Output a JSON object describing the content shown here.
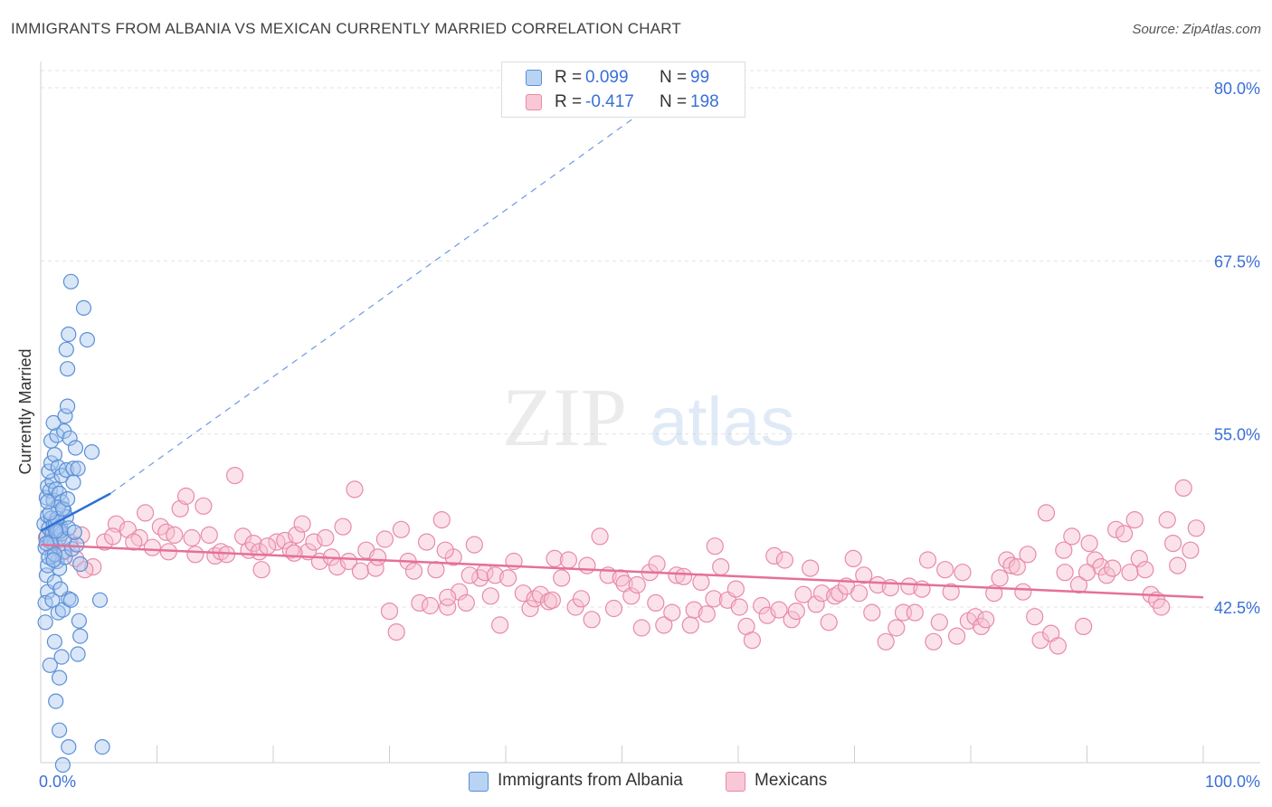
{
  "title": "IMMIGRANTS FROM ALBANIA VS MEXICAN CURRENTLY MARRIED CORRELATION CHART",
  "source": "Source: ZipAtlas.com",
  "watermark": {
    "zip": "ZIP",
    "atlas": "atlas"
  },
  "colors": {
    "blue_fill": "#a8c8f0",
    "blue_stroke": "#5b8fd6",
    "blue_line": "#2e6fd6",
    "pink_fill": "#f6bfd0",
    "pink_stroke": "#e88aa8",
    "pink_line": "#e5709a",
    "tick_label": "#3a6fd8",
    "grid": "#e3e3e3"
  },
  "stats": [
    {
      "swatch": "blue",
      "r_label": "R =",
      "r_value": "0.099",
      "n_label": "N =",
      "n_value": "99"
    },
    {
      "swatch": "pink",
      "r_label": "R =",
      "r_value": "-0.417",
      "n_label": "N =",
      "n_value": "198"
    }
  ],
  "legend": [
    {
      "swatch": "blue",
      "label": "Immigrants from Albania"
    },
    {
      "swatch": "pink",
      "label": "Mexicans"
    }
  ],
  "chart_data": {
    "type": "scatter",
    "title": "IMMIGRANTS FROM ALBANIA VS MEXICAN CURRENTLY MARRIED CORRELATION CHART",
    "xlabel": "",
    "ylabel": "Currently Married",
    "xlim": [
      0,
      100
    ],
    "ylim": [
      33.0,
      82.0
    ],
    "x_tick_labels": [
      "0.0%",
      "100.0%"
    ],
    "y_ticks": [
      42.5,
      55.0,
      67.5,
      80.0
    ],
    "y_tick_labels": [
      "42.5%",
      "55.0%",
      "67.5%",
      "80.0%"
    ],
    "grid": true,
    "series": [
      {
        "name": "Immigrants from Albania",
        "color": "blue",
        "trend": {
          "x": [
            0,
            6.0
          ],
          "y": [
            48.0,
            50.7
          ],
          "extended_to": [
            52,
            78.4
          ]
        },
        "points": [
          [
            0.3,
            48.5
          ],
          [
            0.5,
            47.6
          ],
          [
            0.4,
            46.8
          ],
          [
            0.6,
            49.1
          ],
          [
            0.7,
            48.2
          ],
          [
            0.8,
            47.3
          ],
          [
            0.9,
            48.9
          ],
          [
            1.0,
            47.8
          ],
          [
            1.1,
            48.4
          ],
          [
            1.2,
            47.1
          ],
          [
            1.3,
            48.6
          ],
          [
            1.4,
            47.9
          ],
          [
            1.5,
            48.1
          ],
          [
            1.6,
            47.5
          ],
          [
            1.7,
            48.3
          ],
          [
            1.8,
            47.8
          ],
          [
            0.5,
            50.4
          ],
          [
            0.6,
            51.2
          ],
          [
            0.8,
            50.9
          ],
          [
            1.0,
            51.6
          ],
          [
            1.1,
            50.2
          ],
          [
            1.3,
            51.0
          ],
          [
            1.6,
            50.7
          ],
          [
            1.8,
            50.1
          ],
          [
            2.0,
            49.5
          ],
          [
            2.2,
            49.0
          ],
          [
            0.7,
            52.3
          ],
          [
            0.9,
            52.9
          ],
          [
            1.2,
            53.5
          ],
          [
            1.5,
            52.6
          ],
          [
            1.8,
            52.0
          ],
          [
            2.2,
            52.4
          ],
          [
            2.8,
            52.5
          ],
          [
            3.2,
            52.5
          ],
          [
            0.9,
            54.5
          ],
          [
            1.4,
            54.9
          ],
          [
            2.0,
            55.2
          ],
          [
            2.5,
            54.7
          ],
          [
            3.0,
            54.0
          ],
          [
            4.4,
            53.7
          ],
          [
            1.1,
            55.8
          ],
          [
            2.1,
            56.3
          ],
          [
            2.3,
            57.0
          ],
          [
            2.3,
            59.7
          ],
          [
            2.2,
            61.1
          ],
          [
            2.4,
            62.2
          ],
          [
            4.0,
            61.8
          ],
          [
            2.6,
            66.0
          ],
          [
            3.7,
            64.1
          ],
          [
            1.0,
            46.2
          ],
          [
            1.4,
            45.8
          ],
          [
            2.0,
            46.5
          ],
          [
            1.6,
            45.3
          ],
          [
            0.5,
            44.8
          ],
          [
            0.6,
            43.6
          ],
          [
            0.4,
            42.8
          ],
          [
            1.0,
            43.0
          ],
          [
            1.5,
            42.1
          ],
          [
            1.9,
            42.3
          ],
          [
            2.4,
            43.1
          ],
          [
            0.4,
            41.4
          ],
          [
            1.2,
            40.0
          ],
          [
            1.8,
            38.9
          ],
          [
            0.8,
            38.3
          ],
          [
            1.6,
            37.4
          ],
          [
            3.2,
            39.1
          ],
          [
            3.4,
            40.4
          ],
          [
            3.3,
            41.5
          ],
          [
            5.1,
            43.0
          ],
          [
            1.3,
            35.7
          ],
          [
            1.6,
            33.6
          ],
          [
            2.4,
            32.4
          ],
          [
            1.9,
            31.1
          ],
          [
            5.3,
            32.4
          ],
          [
            0.6,
            45.5
          ],
          [
            2.6,
            43.0
          ],
          [
            1.2,
            44.3
          ],
          [
            1.7,
            43.8
          ],
          [
            2.1,
            46.1
          ],
          [
            2.7,
            46.7
          ],
          [
            3.1,
            47.0
          ],
          [
            3.4,
            45.6
          ],
          [
            1.5,
            49.7
          ],
          [
            2.8,
            51.5
          ],
          [
            0.7,
            46.1
          ],
          [
            0.9,
            47.2
          ],
          [
            1.2,
            46.3
          ],
          [
            1.4,
            48.9
          ],
          [
            1.7,
            48.0
          ],
          [
            2.0,
            47.4
          ],
          [
            2.4,
            48.2
          ],
          [
            0.5,
            47.1
          ],
          [
            0.8,
            49.3
          ],
          [
            1.1,
            45.9
          ],
          [
            1.9,
            49.6
          ],
          [
            2.3,
            50.3
          ],
          [
            2.9,
            47.9
          ],
          [
            0.6,
            50.1
          ],
          [
            1.3,
            48.0
          ]
        ]
      },
      {
        "name": "Mexicans",
        "color": "pink",
        "trend": {
          "x": [
            0,
            100
          ],
          "y": [
            47.0,
            43.2
          ]
        },
        "points": [
          [
            0.5,
            47.5
          ],
          [
            1.0,
            46.8
          ],
          [
            1.5,
            47.9
          ],
          [
            2.0,
            46.5
          ],
          [
            2.5,
            47.2
          ],
          [
            3.0,
            46.0
          ],
          [
            3.5,
            47.7
          ],
          [
            4.5,
            45.4
          ],
          [
            5.5,
            47.2
          ],
          [
            6.5,
            48.5
          ],
          [
            7.5,
            48.1
          ],
          [
            8.5,
            47.5
          ],
          [
            9.0,
            49.3
          ],
          [
            9.6,
            46.8
          ],
          [
            10.3,
            48.3
          ],
          [
            10.8,
            47.9
          ],
          [
            11.5,
            47.7
          ],
          [
            12.0,
            49.6
          ],
          [
            12.5,
            50.5
          ],
          [
            13.0,
            47.5
          ],
          [
            13.3,
            46.3
          ],
          [
            14.0,
            49.8
          ],
          [
            14.5,
            47.7
          ],
          [
            15.0,
            46.2
          ],
          [
            15.5,
            46.5
          ],
          [
            16.0,
            46.3
          ],
          [
            16.7,
            52.0
          ],
          [
            17.4,
            47.6
          ],
          [
            17.9,
            46.6
          ],
          [
            18.3,
            47.1
          ],
          [
            18.8,
            46.5
          ],
          [
            19.0,
            45.2
          ],
          [
            20.3,
            47.2
          ],
          [
            21.0,
            47.3
          ],
          [
            21.5,
            46.6
          ],
          [
            22.0,
            47.7
          ],
          [
            22.5,
            48.5
          ],
          [
            23.0,
            46.5
          ],
          [
            23.5,
            47.2
          ],
          [
            24.0,
            45.8
          ],
          [
            24.5,
            47.5
          ],
          [
            25.0,
            46.1
          ],
          [
            25.5,
            45.4
          ],
          [
            26.0,
            48.3
          ],
          [
            26.5,
            45.8
          ],
          [
            27.0,
            51.0
          ],
          [
            27.5,
            45.1
          ],
          [
            28.0,
            46.6
          ],
          [
            28.8,
            45.3
          ],
          [
            29.6,
            47.4
          ],
          [
            30.0,
            42.2
          ],
          [
            30.6,
            40.7
          ],
          [
            31.0,
            48.1
          ],
          [
            31.6,
            45.8
          ],
          [
            32.1,
            45.1
          ],
          [
            32.6,
            42.8
          ],
          [
            33.2,
            47.2
          ],
          [
            33.5,
            42.6
          ],
          [
            34.0,
            45.2
          ],
          [
            34.5,
            48.8
          ],
          [
            35.0,
            42.5
          ],
          [
            35.5,
            46.1
          ],
          [
            36.0,
            43.6
          ],
          [
            36.6,
            42.8
          ],
          [
            37.3,
            47.0
          ],
          [
            37.8,
            44.6
          ],
          [
            38.2,
            45.0
          ],
          [
            38.7,
            43.3
          ],
          [
            39.1,
            44.8
          ],
          [
            39.5,
            41.2
          ],
          [
            40.2,
            44.6
          ],
          [
            40.7,
            45.8
          ],
          [
            41.5,
            43.5
          ],
          [
            42.1,
            42.4
          ],
          [
            42.5,
            43.1
          ],
          [
            43.0,
            43.4
          ],
          [
            43.7,
            42.9
          ],
          [
            44.2,
            46.0
          ],
          [
            44.8,
            44.6
          ],
          [
            45.4,
            45.9
          ],
          [
            46.0,
            42.5
          ],
          [
            46.5,
            43.1
          ],
          [
            47.0,
            45.5
          ],
          [
            47.4,
            41.6
          ],
          [
            48.1,
            47.6
          ],
          [
            48.8,
            44.8
          ],
          [
            49.3,
            42.4
          ],
          [
            49.9,
            44.6
          ],
          [
            50.2,
            44.2
          ],
          [
            50.8,
            43.3
          ],
          [
            51.3,
            44.1
          ],
          [
            51.7,
            41.0
          ],
          [
            52.4,
            45.0
          ],
          [
            52.9,
            42.8
          ],
          [
            53.6,
            41.2
          ],
          [
            54.3,
            42.1
          ],
          [
            54.7,
            44.8
          ],
          [
            55.3,
            44.7
          ],
          [
            55.9,
            41.2
          ],
          [
            56.2,
            42.3
          ],
          [
            56.8,
            44.3
          ],
          [
            57.3,
            42.0
          ],
          [
            57.9,
            43.1
          ],
          [
            58.5,
            45.4
          ],
          [
            59.1,
            43.0
          ],
          [
            59.8,
            43.8
          ],
          [
            60.1,
            42.5
          ],
          [
            60.7,
            41.1
          ],
          [
            61.2,
            40.1
          ],
          [
            62.0,
            42.6
          ],
          [
            62.5,
            41.9
          ],
          [
            63.1,
            46.2
          ],
          [
            63.5,
            42.3
          ],
          [
            64.0,
            45.9
          ],
          [
            64.6,
            41.6
          ],
          [
            65.0,
            42.2
          ],
          [
            65.6,
            43.4
          ],
          [
            66.2,
            45.3
          ],
          [
            66.7,
            42.7
          ],
          [
            67.2,
            43.5
          ],
          [
            67.8,
            41.4
          ],
          [
            68.3,
            43.3
          ],
          [
            68.7,
            43.5
          ],
          [
            69.3,
            44.0
          ],
          [
            69.9,
            46.0
          ],
          [
            70.4,
            43.5
          ],
          [
            70.8,
            44.8
          ],
          [
            71.5,
            42.1
          ],
          [
            72.0,
            44.1
          ],
          [
            72.7,
            40.0
          ],
          [
            73.1,
            43.9
          ],
          [
            73.6,
            41.0
          ],
          [
            74.2,
            42.1
          ],
          [
            74.7,
            44.0
          ],
          [
            75.2,
            42.1
          ],
          [
            75.8,
            43.8
          ],
          [
            76.3,
            45.9
          ],
          [
            76.8,
            40.0
          ],
          [
            77.3,
            41.4
          ],
          [
            77.8,
            45.2
          ],
          [
            78.3,
            43.6
          ],
          [
            78.8,
            40.4
          ],
          [
            79.3,
            45.0
          ],
          [
            79.8,
            41.5
          ],
          [
            80.4,
            41.8
          ],
          [
            80.9,
            41.1
          ],
          [
            81.3,
            41.6
          ],
          [
            82.0,
            43.5
          ],
          [
            82.5,
            44.6
          ],
          [
            83.1,
            45.9
          ],
          [
            83.5,
            45.5
          ],
          [
            84.0,
            45.4
          ],
          [
            84.5,
            43.6
          ],
          [
            84.9,
            46.3
          ],
          [
            85.5,
            41.8
          ],
          [
            86.0,
            40.1
          ],
          [
            86.5,
            49.3
          ],
          [
            86.9,
            40.6
          ],
          [
            87.5,
            39.7
          ],
          [
            88.1,
            45.0
          ],
          [
            88.7,
            47.6
          ],
          [
            89.3,
            44.1
          ],
          [
            89.7,
            41.1
          ],
          [
            90.2,
            47.1
          ],
          [
            90.7,
            45.9
          ],
          [
            91.2,
            45.4
          ],
          [
            91.7,
            44.8
          ],
          [
            92.2,
            45.3
          ],
          [
            92.5,
            48.1
          ],
          [
            93.2,
            47.8
          ],
          [
            93.7,
            45.0
          ],
          [
            94.1,
            48.8
          ],
          [
            94.5,
            46.0
          ],
          [
            95.0,
            45.2
          ],
          [
            95.5,
            43.4
          ],
          [
            96.0,
            43.0
          ],
          [
            96.4,
            42.5
          ],
          [
            96.9,
            48.8
          ],
          [
            97.4,
            47.1
          ],
          [
            97.8,
            45.5
          ],
          [
            98.3,
            51.1
          ],
          [
            98.9,
            46.6
          ],
          [
            99.4,
            48.2
          ],
          [
            3.8,
            45.2
          ],
          [
            6.2,
            47.6
          ],
          [
            8.0,
            47.2
          ],
          [
            11.0,
            46.5
          ],
          [
            19.5,
            46.9
          ],
          [
            21.8,
            46.4
          ],
          [
            29.0,
            46.1
          ],
          [
            34.8,
            46.6
          ],
          [
            36.9,
            44.8
          ],
          [
            44.0,
            43.0
          ],
          [
            53.0,
            45.6
          ],
          [
            58.0,
            46.9
          ],
          [
            88.0,
            46.6
          ],
          [
            90.0,
            45.0
          ],
          [
            35.0,
            43.2
          ]
        ]
      }
    ]
  }
}
